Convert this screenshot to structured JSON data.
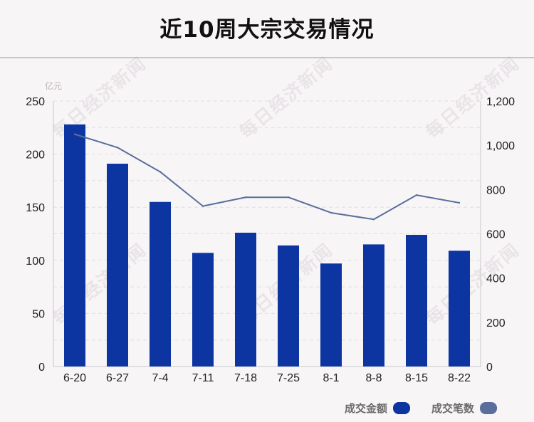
{
  "title": "近10周大宗交易情况",
  "watermark_text": "每日经济新闻",
  "colors": {
    "bar": "#0c35a1",
    "line": "#5a6e9b",
    "grid": "#e2dee1",
    "axis": "#c9c6c8"
  },
  "legend": {
    "amount_label": "成交金额",
    "count_label": "成交笔数"
  },
  "chart_data": {
    "type": "bar",
    "categories": [
      "6-20",
      "6-27",
      "7-4",
      "7-11",
      "7-18",
      "7-25",
      "8-1",
      "8-8",
      "8-15",
      "8-22"
    ],
    "ylabel_left": "亿元",
    "ylim_left": [
      0,
      250
    ],
    "yticks_left": [
      0,
      50,
      100,
      150,
      200,
      250
    ],
    "ylim_right": [
      0,
      1200
    ],
    "yticks_right": [
      0,
      200,
      400,
      600,
      800,
      1000,
      1200
    ],
    "ytick_labels_right": [
      "0",
      "200",
      "400",
      "600",
      "800",
      "1,000",
      "1,200"
    ],
    "grid": true,
    "legend_position": "bottom-right",
    "series": [
      {
        "name": "成交金额",
        "type": "bar",
        "axis": "left",
        "values": [
          228,
          191,
          155,
          107,
          126,
          114,
          97,
          115,
          124,
          109
        ]
      },
      {
        "name": "成交笔数",
        "type": "line",
        "axis": "right",
        "values": [
          1050,
          990,
          880,
          725,
          765,
          765,
          695,
          665,
          775,
          740
        ]
      }
    ]
  }
}
